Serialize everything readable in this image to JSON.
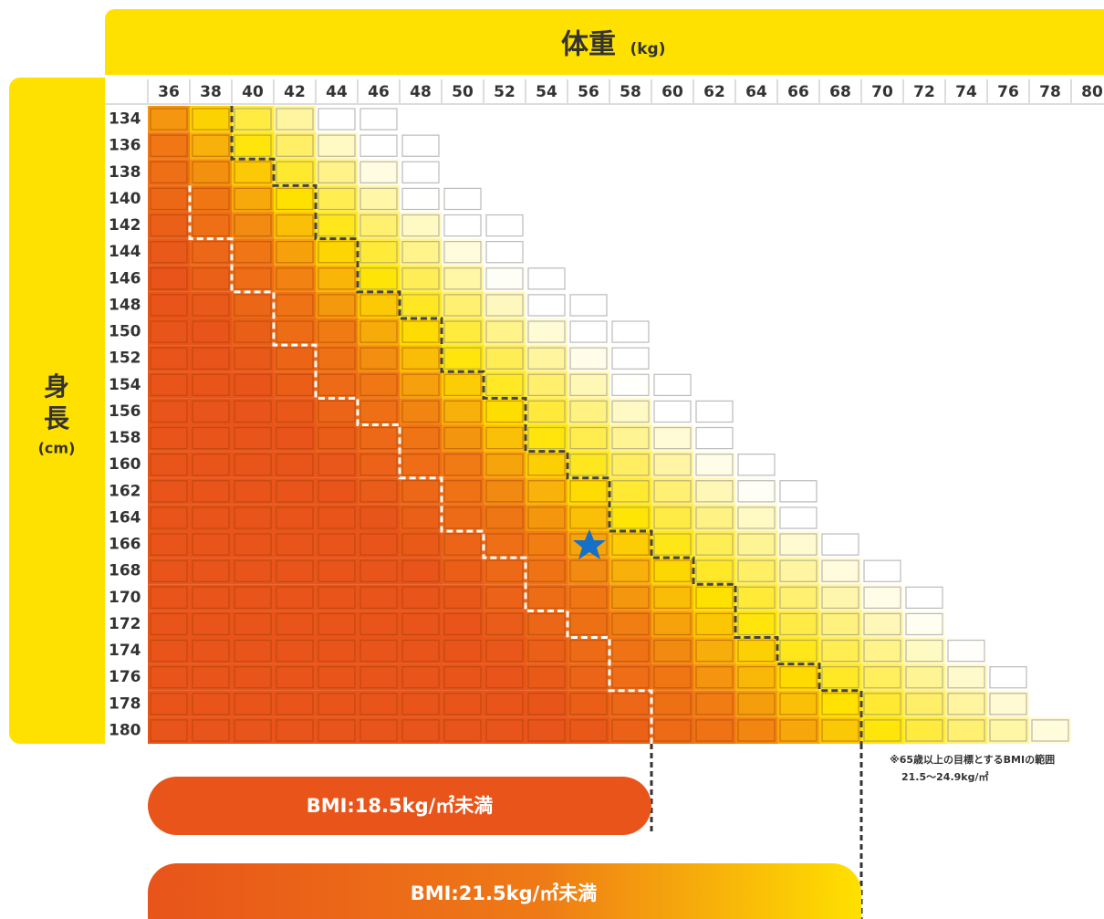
{
  "header": {
    "title": "体重",
    "unit": "(kg)"
  },
  "side": {
    "title_1": "身",
    "title_2": "長",
    "unit": "(cm)"
  },
  "weights": [
    36,
    38,
    40,
    42,
    44,
    46,
    48,
    50,
    52,
    54,
    56,
    58,
    60,
    62,
    64,
    66,
    68,
    70,
    72,
    74,
    76,
    78,
    80
  ],
  "heights": [
    134,
    136,
    138,
    140,
    142,
    144,
    146,
    148,
    150,
    152,
    154,
    156,
    158,
    160,
    162,
    164,
    166,
    168,
    170,
    172,
    174,
    176,
    178,
    180
  ],
  "bmi_bands": [
    {
      "value": 18.5,
      "label": "BMI:18.5kg/㎡未満"
    },
    {
      "value": 21.5,
      "label": "BMI:21.5kg/㎡未満"
    }
  ],
  "note": {
    "line_1": "※65歳以上の目標とするBMIの範囲",
    "line_2": "21.5～24.9kg/㎡"
  }
}
